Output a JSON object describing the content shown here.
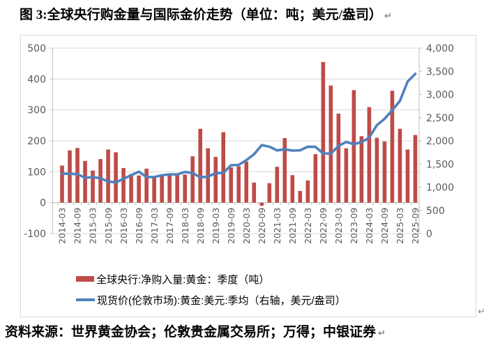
{
  "title": {
    "text": "图 3:全球央行购金量与国际金价走势（单位：吨；美元/盎司）",
    "paragraph_mark": "↵"
  },
  "source": {
    "text": "资料来源：世界黄金协会；伦敦贵金属交易所；万得；中银证券",
    "paragraph_mark": "↵"
  },
  "frame_paragraph_mark": "↵",
  "colors": {
    "bar": "#be4b48",
    "line": "#4f81bd",
    "gridline": "#d9d9d9",
    "axis_line": "#bfbfbf",
    "axis_text": "#595959",
    "frame_border": "#d9d9d9",
    "text": "#000000",
    "paragraph_mark": "#8a8a8a"
  },
  "chart_data": {
    "type": "bar",
    "subtype": "combo-bar-line-dual-axis",
    "grid": true,
    "legend_position": "bottom",
    "x_label_interval": 2,
    "categories": [
      "2014-03",
      "2014-06",
      "2014-09",
      "2014-12",
      "2015-03",
      "2015-06",
      "2015-09",
      "2015-12",
      "2016-03",
      "2016-06",
      "2016-09",
      "2016-12",
      "2017-03",
      "2017-06",
      "2017-09",
      "2017-12",
      "2018-03",
      "2018-06",
      "2018-09",
      "2018-12",
      "2019-03",
      "2019-06",
      "2019-09",
      "2019-12",
      "2020-03",
      "2020-06",
      "2020-09",
      "2020-12",
      "2021-03",
      "2021-06",
      "2021-09",
      "2021-12",
      "2022-03",
      "2022-06",
      "2022-09",
      "2022-12",
      "2023-03",
      "2023-06",
      "2023-09",
      "2023-12",
      "2024-03",
      "2024-06",
      "2024-09",
      "2024-12",
      "2025-03",
      "2025-06",
      "2025-09"
    ],
    "series": [
      {
        "name": "全球央行:净购入量:黄金：季度（吨）",
        "type": "bar",
        "axis": "left",
        "color": "#be4b48",
        "values": [
          120,
          169,
          177,
          135,
          104,
          141,
          172,
          163,
          112,
          93,
          88,
          110,
          84,
          88,
          95,
          91,
          91,
          150,
          239,
          176,
          148,
          228,
          114,
          118,
          133,
          65,
          -10,
          63,
          116,
          209,
          89,
          38,
          72,
          157,
          455,
          379,
          288,
          176,
          364,
          215,
          309,
          210,
          198,
          362,
          239,
          172,
          219
        ]
      },
      {
        "name": "现货价(伦敦市场):黄金:美元:季均（右轴，美元/盎司）",
        "type": "line",
        "axis": "right",
        "color": "#4f81bd",
        "values": [
          1293,
          1288,
          1282,
          1201,
          1218,
          1192,
          1124,
          1106,
          1181,
          1258,
          1335,
          1219,
          1219,
          1257,
          1278,
          1275,
          1329,
          1306,
          1213,
          1228,
          1304,
          1309,
          1474,
          1481,
          1583,
          1711,
          1909,
          1874,
          1794,
          1816,
          1790,
          1795,
          1874,
          1871,
          1729,
          1725,
          1890,
          1976,
          1928,
          1971,
          2070,
          2338,
          2474,
          2660,
          2860,
          3280,
          3445
        ]
      }
    ],
    "left_axis": {
      "min": -100,
      "max": 500,
      "step": 100,
      "labels": [
        "500",
        "400",
        "300",
        "200",
        "100",
        "0",
        "-100"
      ]
    },
    "right_axis": {
      "min": 0,
      "max": 4000,
      "step": 500,
      "labels": [
        "4,000",
        "3,500",
        "3,000",
        "2,500",
        "2,000",
        "1,500",
        "1,000",
        "500",
        "0"
      ]
    }
  }
}
